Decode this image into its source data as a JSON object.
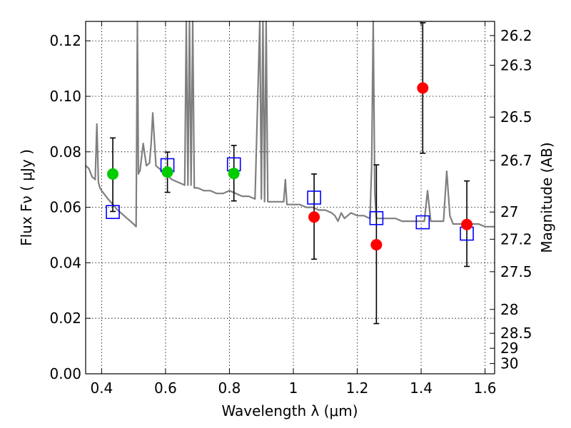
{
  "chart_data": {
    "type": "scatter",
    "xlabel": "Wavelength  λ (μm)",
    "ylabel": "Flux  Fν  ( μJy )",
    "y2label": "Magnitude (AB)",
    "xlim": [
      0.35,
      1.63
    ],
    "ylim": [
      0.0,
      0.127
    ],
    "x_ticks": [
      0.4,
      0.6,
      0.8,
      1.0,
      1.2,
      1.4,
      1.6
    ],
    "x_tick_labels": [
      "0.4",
      "0.6",
      "0.8",
      "1",
      "1.2",
      "1.4",
      "1.6"
    ],
    "y_ticks": [
      0.0,
      0.02,
      0.04,
      0.06,
      0.08,
      0.1,
      0.12
    ],
    "y_tick_labels": [
      "0.00",
      "0.02",
      "0.04",
      "0.06",
      "0.08",
      "0.10",
      "0.12"
    ],
    "y2_ticks": [
      {
        "label": "26.2",
        "flux": 0.1219
      },
      {
        "label": "26.3",
        "flux": 0.1112
      },
      {
        "label": "26.5",
        "flux": 0.0925
      },
      {
        "label": "26.7",
        "flux": 0.0769
      },
      {
        "label": "27",
        "flux": 0.0583
      },
      {
        "label": "27.2",
        "flux": 0.0485
      },
      {
        "label": "27.5",
        "flux": 0.0368
      },
      {
        "label": "28",
        "flux": 0.0232
      },
      {
        "label": "28.5",
        "flux": 0.0146
      },
      {
        "label": "29",
        "flux": 0.0092
      },
      {
        "label": "30",
        "flux": 0.0037
      }
    ],
    "grid": true,
    "series": [
      {
        "kind": "model-spectrum",
        "color": "#7f7f7f",
        "x": [
          0.35,
          0.36,
          0.37,
          0.38,
          0.385,
          0.39,
          0.395,
          0.4,
          0.42,
          0.45,
          0.48,
          0.5,
          0.508,
          0.512,
          0.515,
          0.518,
          0.52,
          0.53,
          0.54,
          0.55,
          0.555,
          0.56,
          0.57,
          0.58,
          0.6,
          0.62,
          0.64,
          0.66,
          0.665,
          0.67,
          0.675,
          0.68,
          0.685,
          0.69,
          0.7,
          0.72,
          0.74,
          0.76,
          0.78,
          0.8,
          0.82,
          0.84,
          0.86,
          0.88,
          0.895,
          0.9,
          0.905,
          0.91,
          0.915,
          0.92,
          0.93,
          0.95,
          0.97,
          0.975,
          0.98,
          1.0,
          1.02,
          1.04,
          1.06,
          1.08,
          1.1,
          1.12,
          1.13,
          1.14,
          1.15,
          1.16,
          1.18,
          1.2,
          1.22,
          1.24,
          1.245,
          1.25,
          1.255,
          1.26,
          1.28,
          1.3,
          1.32,
          1.34,
          1.36,
          1.38,
          1.4,
          1.41,
          1.42,
          1.43,
          1.44,
          1.46,
          1.47,
          1.48,
          1.49,
          1.5,
          1.52,
          1.54,
          1.56,
          1.58,
          1.6,
          1.63
        ],
        "y": [
          0.075,
          0.074,
          0.071,
          0.07,
          0.09,
          0.069,
          0.067,
          0.066,
          0.063,
          0.059,
          0.056,
          0.054,
          0.053,
          0.127,
          0.072,
          0.073,
          0.073,
          0.083,
          0.075,
          0.076,
          0.083,
          0.094,
          0.075,
          0.074,
          0.072,
          0.07,
          0.069,
          0.068,
          0.127,
          0.068,
          0.127,
          0.068,
          0.127,
          0.067,
          0.067,
          0.066,
          0.066,
          0.065,
          0.065,
          0.066,
          0.065,
          0.064,
          0.064,
          0.063,
          0.127,
          0.063,
          0.127,
          0.062,
          0.127,
          0.062,
          0.062,
          0.062,
          0.062,
          0.07,
          0.061,
          0.061,
          0.061,
          0.06,
          0.06,
          0.059,
          0.059,
          0.058,
          0.057,
          0.055,
          0.058,
          0.056,
          0.058,
          0.057,
          0.057,
          0.056,
          0.075,
          0.127,
          0.065,
          0.056,
          0.056,
          0.056,
          0.056,
          0.055,
          0.055,
          0.055,
          0.055,
          0.055,
          0.066,
          0.055,
          0.055,
          0.055,
          0.055,
          0.073,
          0.057,
          0.054,
          0.054,
          0.054,
          0.054,
          0.054,
          0.053,
          0.053
        ]
      },
      {
        "kind": "model-photometry",
        "marker": "open-square",
        "color": "#0000ff",
        "x": [
          0.435,
          0.606,
          0.814,
          1.065,
          1.26,
          1.405,
          1.543
        ],
        "y": [
          0.0583,
          0.0752,
          0.0755,
          0.0635,
          0.0561,
          0.0546,
          0.0505
        ]
      },
      {
        "kind": "observed",
        "marker": "filled-circle",
        "color": "#00cc00",
        "x": [
          0.435,
          0.606,
          0.814
        ],
        "y": [
          0.072,
          0.0727,
          0.0722
        ],
        "yerr_low": [
          0.0585,
          0.0654,
          0.0623
        ],
        "yerr_high": [
          0.085,
          0.0799,
          0.0823
        ]
      },
      {
        "kind": "observed",
        "marker": "filled-circle",
        "color": "#ff0000",
        "x": [
          1.065,
          1.26,
          1.405,
          1.543
        ],
        "y": [
          0.0565,
          0.0465,
          0.103,
          0.0538
        ],
        "yerr_low": [
          0.0413,
          0.0181,
          0.0795,
          0.0387
        ],
        "yerr_high": [
          0.072,
          0.0753,
          0.1265,
          0.0695
        ]
      }
    ]
  }
}
